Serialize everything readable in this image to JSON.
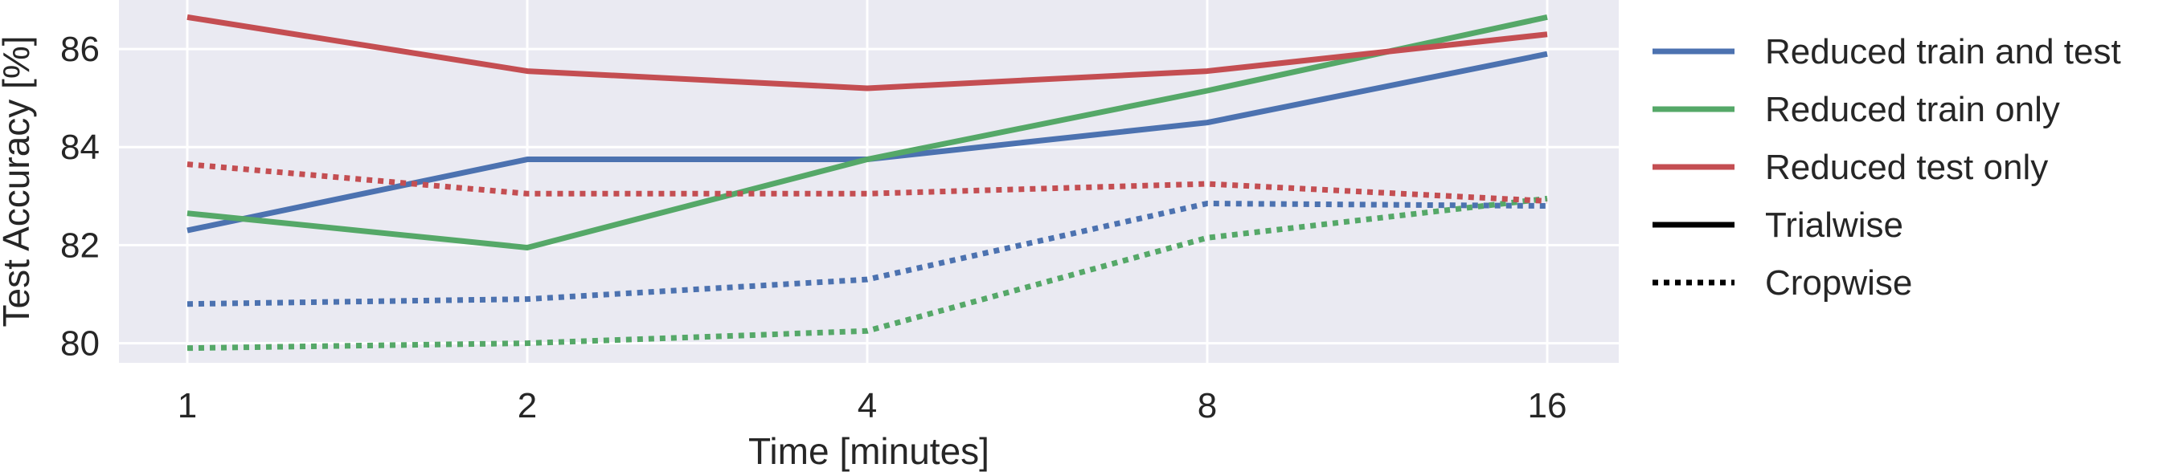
{
  "chart_data": {
    "type": "line",
    "x": [
      1,
      2,
      4,
      8,
      16
    ],
    "x_tick_labels": [
      "1",
      "2",
      "4",
      "8",
      "16"
    ],
    "x_scale": "log2",
    "xlabel": "Time [minutes]",
    "ylabel": "Test Accuracy [%]",
    "y_ticks": [
      80,
      82,
      84,
      86
    ],
    "ylim": [
      79.6,
      87.0
    ],
    "grid": true,
    "legend_position": "right",
    "series": [
      {
        "name": "Reduced train and test",
        "color": "#4c72b0",
        "style": "solid",
        "values": [
          82.3,
          83.75,
          83.75,
          84.5,
          85.9
        ]
      },
      {
        "name": "Reduced train only",
        "color": "#55a868",
        "style": "solid",
        "values": [
          82.65,
          81.95,
          83.75,
          85.15,
          86.65
        ]
      },
      {
        "name": "Reduced test only",
        "color": "#c44e52",
        "style": "solid",
        "values": [
          86.65,
          85.55,
          85.2,
          85.55,
          86.3
        ]
      },
      {
        "name": "Reduced train and test",
        "color": "#4c72b0",
        "style": "dotted",
        "values": [
          80.8,
          80.9,
          81.3,
          82.85,
          82.8
        ]
      },
      {
        "name": "Reduced train only",
        "color": "#55a868",
        "style": "dotted",
        "values": [
          79.9,
          80.0,
          80.25,
          82.15,
          82.95
        ]
      },
      {
        "name": "Reduced test only",
        "color": "#c44e52",
        "style": "dotted",
        "values": [
          83.65,
          83.05,
          83.05,
          83.25,
          82.9
        ]
      }
    ],
    "legend": [
      {
        "label": "Reduced train and test",
        "color": "#4c72b0",
        "style": "solid"
      },
      {
        "label": "Reduced train only",
        "color": "#55a868",
        "style": "solid"
      },
      {
        "label": "Reduced test only",
        "color": "#c44e52",
        "style": "solid"
      },
      {
        "label": "Trialwise",
        "color": "#000000",
        "style": "solid"
      },
      {
        "label": "Cropwise",
        "color": "#000000",
        "style": "dotted"
      }
    ]
  }
}
